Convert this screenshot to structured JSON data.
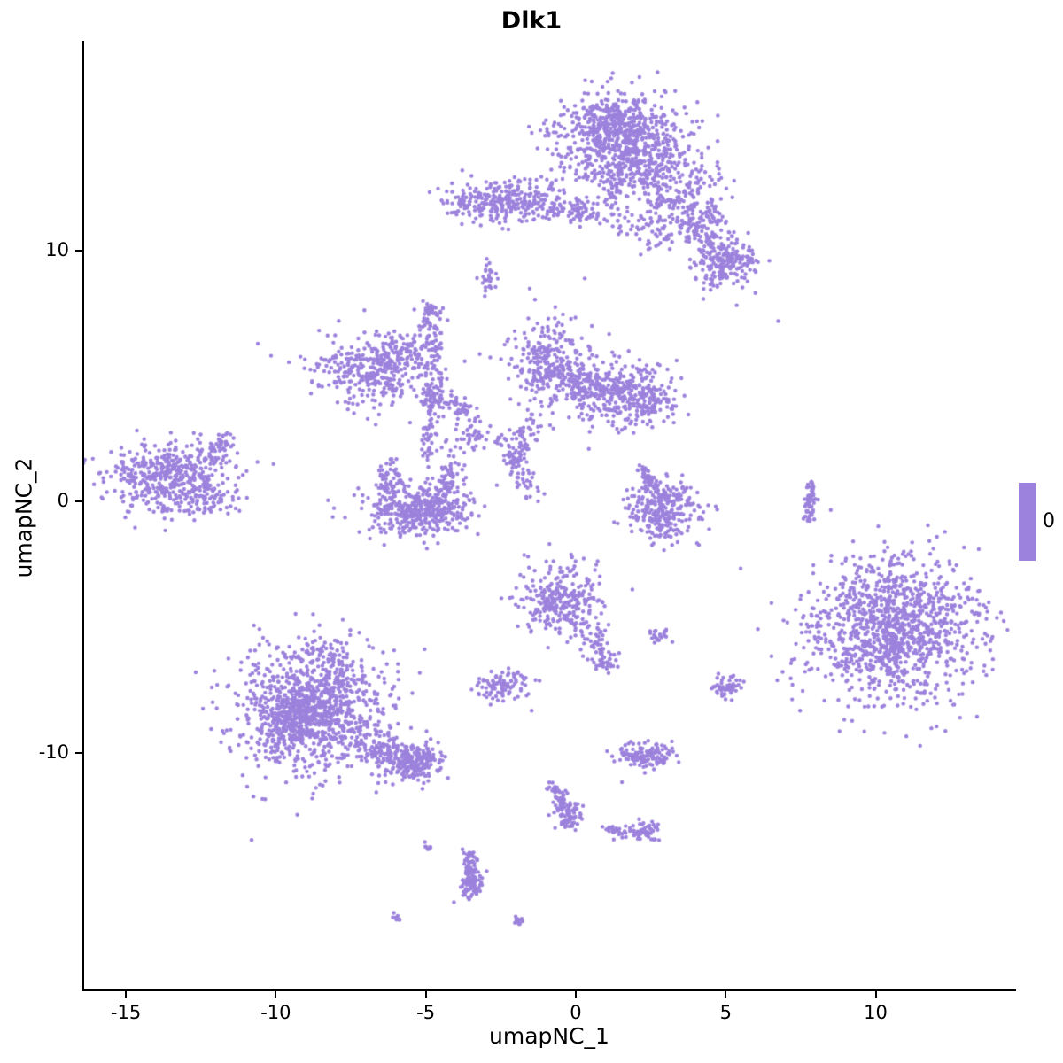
{
  "chart_data": {
    "type": "scatter",
    "title": "Dlk1",
    "xlabel": "umapNC_1",
    "ylabel": "umapNC_2",
    "x_ticks": [
      -15,
      -10,
      -5,
      0,
      5,
      10
    ],
    "y_ticks": [
      -10,
      0,
      10
    ],
    "xlim": [
      -16.42,
      14.65
    ],
    "ylim": [
      -19.48,
      18.34
    ],
    "legend_label": "0",
    "point_color": "#9C82DC",
    "point_radius_px": 2.2,
    "background": "#FFFFFF",
    "grid": false,
    "legend_position": "right",
    "clusters": [
      {
        "t": "blob",
        "x": 1.5,
        "y": 14.4,
        "sx": 1.15,
        "sy": 0.95,
        "n": 620
      },
      {
        "t": "blob",
        "x": 2.1,
        "y": 13.3,
        "sx": 0.8,
        "sy": 0.6,
        "n": 160
      },
      {
        "t": "blob",
        "x": 1.0,
        "y": 15.2,
        "sx": 0.6,
        "sy": 0.5,
        "n": 120
      },
      {
        "t": "line",
        "x1": 1.2,
        "y1": 13.0,
        "x2": 1.35,
        "y2": 10.9,
        "j": 0.18,
        "n": 45
      },
      {
        "t": "blob",
        "x": 2.6,
        "y": 10.9,
        "sx": 0.5,
        "sy": 0.45,
        "n": 60
      },
      {
        "t": "blob",
        "x": 3.8,
        "y": 12.7,
        "sx": 0.65,
        "sy": 0.55,
        "n": 70
      },
      {
        "t": "line",
        "x1": 3.0,
        "y1": 12.2,
        "x2": 4.7,
        "y2": 10.1,
        "j": 0.4,
        "n": 130
      },
      {
        "t": "blob",
        "x": 5.0,
        "y": 9.6,
        "sx": 0.55,
        "sy": 0.5,
        "n": 200
      },
      {
        "t": "blob",
        "x": 4.4,
        "y": 11.4,
        "sx": 0.35,
        "sy": 0.3,
        "n": 50
      },
      {
        "t": "blob",
        "x": -2.35,
        "y": 12.0,
        "sx": 0.85,
        "sy": 0.42,
        "n": 260
      },
      {
        "t": "blob",
        "x": -3.6,
        "y": 11.9,
        "sx": 0.3,
        "sy": 0.25,
        "n": 30
      },
      {
        "t": "line",
        "x1": -1.2,
        "y1": 11.7,
        "x2": 0.8,
        "y2": 11.4,
        "j": 0.22,
        "n": 60
      },
      {
        "t": "blob",
        "x": 0.2,
        "y": 11.7,
        "sx": 0.3,
        "sy": 0.3,
        "n": 25
      },
      {
        "t": "blob",
        "x": -2.9,
        "y": 8.9,
        "sx": 0.14,
        "sy": 0.3,
        "n": 28
      },
      {
        "t": "pts",
        "p": [
          [
            0.3,
            8.9
          ],
          [
            6.75,
            7.2
          ],
          [
            -10.6,
            6.3
          ]
        ]
      },
      {
        "t": "blob",
        "x": -6.8,
        "y": 5.3,
        "sx": 0.95,
        "sy": 0.7,
        "n": 330
      },
      {
        "t": "blob",
        "x": -5.6,
        "y": 6.2,
        "sx": 0.45,
        "sy": 0.4,
        "n": 70
      },
      {
        "t": "line",
        "x1": -4.8,
        "y1": 7.7,
        "x2": -4.75,
        "y2": 4.4,
        "j": 0.16,
        "n": 90
      },
      {
        "t": "blob",
        "x": -4.75,
        "y": 7.6,
        "sx": 0.2,
        "sy": 0.2,
        "n": 25
      },
      {
        "t": "line",
        "x1": -4.5,
        "y1": 4.2,
        "x2": -3.4,
        "y2": 3.3,
        "j": 0.25,
        "n": 55
      },
      {
        "t": "blob",
        "x": -0.9,
        "y": 5.5,
        "sx": 0.7,
        "sy": 0.95,
        "n": 300
      },
      {
        "t": "blob",
        "x": 1.5,
        "y": 4.3,
        "sx": 0.85,
        "sy": 0.7,
        "n": 300
      },
      {
        "t": "line",
        "x1": -0.3,
        "y1": 4.9,
        "x2": 1.0,
        "y2": 4.5,
        "j": 0.3,
        "n": 80
      },
      {
        "t": "blob",
        "x": 2.4,
        "y": 3.9,
        "sx": 0.4,
        "sy": 0.35,
        "n": 60
      },
      {
        "t": "line",
        "x1": -2.6,
        "y1": 2.7,
        "x2": -1.4,
        "y2": 0.4,
        "j": 0.2,
        "n": 70
      },
      {
        "t": "line",
        "x1": -1.3,
        "y1": 3.3,
        "x2": -2.2,
        "y2": 1.5,
        "j": 0.2,
        "n": 50
      },
      {
        "t": "blob",
        "x": -13.5,
        "y": 1.0,
        "sx": 1.05,
        "sy": 0.72,
        "n": 470
      },
      {
        "t": "line",
        "x1": -12.4,
        "y1": 1.9,
        "x2": -11.5,
        "y2": 2.6,
        "j": 0.18,
        "n": 40
      },
      {
        "t": "blob",
        "x": -12.6,
        "y": 0.1,
        "sx": 0.5,
        "sy": 0.35,
        "n": 50
      },
      {
        "t": "blob",
        "x": -5.2,
        "y": -0.5,
        "sx": 0.85,
        "sy": 0.4,
        "n": 320
      },
      {
        "t": "blob",
        "x": -5.2,
        "y": 0.1,
        "sx": 0.95,
        "sy": 0.45,
        "n": 120
      },
      {
        "t": "line",
        "x1": -6.3,
        "y1": 1.5,
        "x2": -6.1,
        "y2": 0.2,
        "j": 0.2,
        "n": 60
      },
      {
        "t": "line",
        "x1": -4.1,
        "y1": 1.6,
        "x2": -4.3,
        "y2": 0.3,
        "j": 0.2,
        "n": 60
      },
      {
        "t": "line",
        "x1": -4.8,
        "y1": 3.9,
        "x2": -4.9,
        "y2": 1.8,
        "j": 0.15,
        "n": 55
      },
      {
        "t": "blob",
        "x": -3.5,
        "y": 2.5,
        "sx": 0.3,
        "sy": 0.3,
        "n": 35
      },
      {
        "t": "blob",
        "x": -4.8,
        "y": 4.1,
        "sx": 0.25,
        "sy": 0.2,
        "n": 30
      },
      {
        "t": "blob",
        "x": 2.9,
        "y": -0.3,
        "sx": 0.55,
        "sy": 0.6,
        "n": 280
      },
      {
        "t": "line",
        "x1": 2.3,
        "y1": 1.3,
        "x2": 2.6,
        "y2": 0.3,
        "j": 0.15,
        "n": 45
      },
      {
        "t": "line",
        "x1": 7.9,
        "y1": 0.8,
        "x2": 7.75,
        "y2": -0.8,
        "j": 0.09,
        "n": 55
      },
      {
        "t": "blob",
        "x": 10.6,
        "y": -5.0,
        "sx": 1.35,
        "sy": 1.35,
        "n": 950
      },
      {
        "t": "blob",
        "x": 10.4,
        "y": -5.4,
        "sx": 1.7,
        "sy": 1.6,
        "n": 260
      },
      {
        "t": "blob",
        "x": -0.5,
        "y": -3.9,
        "sx": 0.7,
        "sy": 0.75,
        "n": 290
      },
      {
        "t": "line",
        "x1": 0.3,
        "y1": -5.0,
        "x2": 1.0,
        "y2": -6.2,
        "j": 0.2,
        "n": 45
      },
      {
        "t": "blob",
        "x": 1.0,
        "y": -6.3,
        "sx": 0.25,
        "sy": 0.2,
        "n": 35
      },
      {
        "t": "blob",
        "x": -2.45,
        "y": -7.3,
        "sx": 0.42,
        "sy": 0.3,
        "n": 95
      },
      {
        "t": "blob",
        "x": 2.7,
        "y": -5.35,
        "sx": 0.18,
        "sy": 0.14,
        "n": 22
      },
      {
        "t": "blob",
        "x": 5.0,
        "y": -7.45,
        "sx": 0.3,
        "sy": 0.22,
        "n": 55
      },
      {
        "t": "blob",
        "x": -8.8,
        "y": -8.3,
        "sx": 1.35,
        "sy": 1.3,
        "n": 850
      },
      {
        "t": "blob",
        "x": -9.2,
        "y": -8.6,
        "sx": 0.75,
        "sy": 0.7,
        "n": 300
      },
      {
        "t": "blob",
        "x": -8.3,
        "y": -6.4,
        "sx": 0.6,
        "sy": 0.5,
        "n": 80
      },
      {
        "t": "line",
        "x1": -7.0,
        "y1": -9.6,
        "x2": -5.1,
        "y2": -10.5,
        "j": 0.42,
        "n": 190
      },
      {
        "t": "blob",
        "x": -5.2,
        "y": -10.4,
        "sx": 0.45,
        "sy": 0.35,
        "n": 120
      },
      {
        "t": "blob",
        "x": 2.35,
        "y": -10.1,
        "sx": 0.5,
        "sy": 0.28,
        "n": 130
      },
      {
        "t": "line",
        "x1": -0.8,
        "y1": -11.3,
        "x2": -0.4,
        "y2": -12.2,
        "j": 0.15,
        "n": 45
      },
      {
        "t": "blob",
        "x": -0.25,
        "y": -12.5,
        "sx": 0.28,
        "sy": 0.3,
        "n": 70
      },
      {
        "t": "line",
        "x1": 0.9,
        "y1": -13.0,
        "x2": 2.0,
        "y2": -13.3,
        "j": 0.12,
        "n": 28
      },
      {
        "t": "blob",
        "x": 2.3,
        "y": -13.15,
        "sx": 0.25,
        "sy": 0.2,
        "n": 50
      },
      {
        "t": "line",
        "x1": -3.6,
        "y1": -13.9,
        "x2": -3.45,
        "y2": -15.4,
        "j": 0.12,
        "n": 70
      },
      {
        "t": "blob",
        "x": -3.5,
        "y": -15.2,
        "sx": 0.22,
        "sy": 0.3,
        "n": 60
      },
      {
        "t": "blob",
        "x": -1.85,
        "y": -16.7,
        "sx": 0.12,
        "sy": 0.1,
        "n": 15
      },
      {
        "t": "blob",
        "x": -6.0,
        "y": -16.6,
        "sx": 0.12,
        "sy": 0.1,
        "n": 10
      },
      {
        "t": "blob",
        "x": -4.9,
        "y": -13.8,
        "sx": 0.1,
        "sy": 0.1,
        "n": 8
      }
    ]
  }
}
